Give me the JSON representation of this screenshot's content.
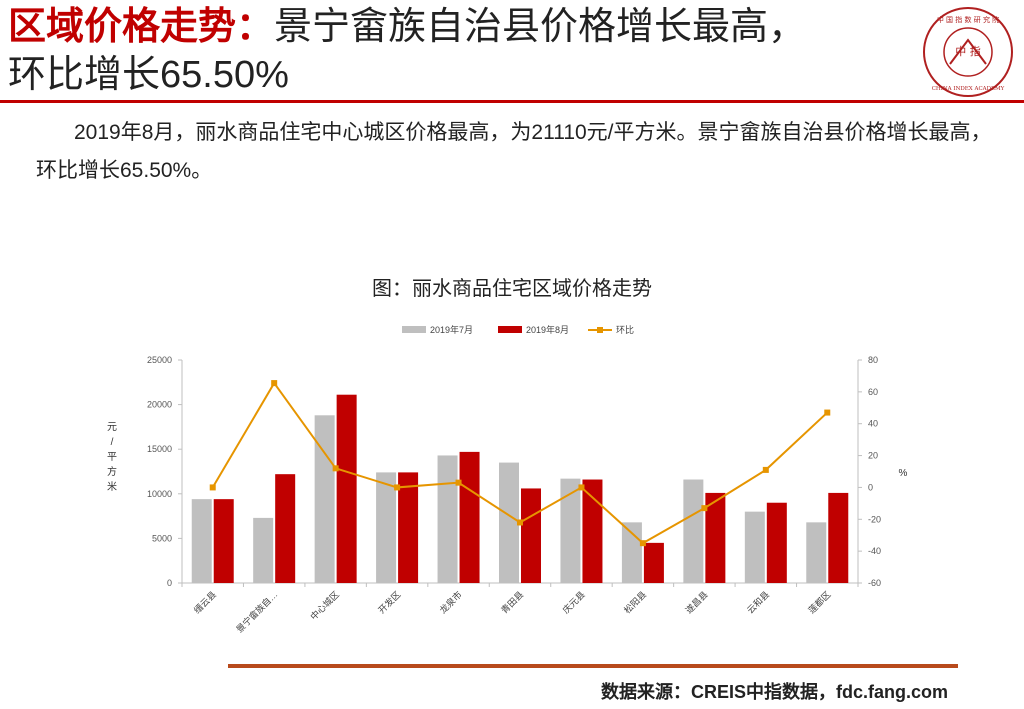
{
  "header": {
    "title_accent": "区域价格走势：",
    "title_rest": "景宁畲族自治县价格增长最高，",
    "title_line2": "环比增长65.50%"
  },
  "body": {
    "paragraph": "2019年8月，丽水商品住宅中心城区价格最高，为21110元/平方米。景宁畲族自治县价格增长最高，环比增长65.50%。"
  },
  "logo": {
    "center_text": "中 指",
    "ring_top": "中 国 指 数 研 究 院",
    "ring_bottom": "CHINA INDEX ACADEMY"
  },
  "chart_title": "图：丽水商品住宅区域价格走势",
  "chart_data": {
    "type": "bar+line",
    "categories": [
      "缙云县",
      "景宁畲族自…",
      "中心城区",
      "开发区",
      "龙泉市",
      "青田县",
      "庆元县",
      "松阳县",
      "遂昌县",
      "云和县",
      "莲都区"
    ],
    "series": [
      {
        "name": "2019年7月",
        "type": "bar",
        "axis": "left",
        "color": "#bfbfbf",
        "values": [
          9400,
          7300,
          18800,
          12400,
          14300,
          13500,
          11700,
          6800,
          11600,
          8000,
          6800
        ]
      },
      {
        "name": "2019年8月",
        "type": "bar",
        "axis": "left",
        "color": "#c00000",
        "values": [
          9400,
          12200,
          21110,
          12400,
          14700,
          10600,
          11600,
          4500,
          10100,
          9000,
          10100
        ]
      },
      {
        "name": "环比",
        "type": "line",
        "axis": "right",
        "color": "#e69500",
        "values": [
          0,
          65.5,
          12,
          0,
          3,
          -22,
          0,
          -35,
          -13,
          11,
          47
        ]
      }
    ],
    "y_left": {
      "label": "元/平方米",
      "min": 0,
      "max": 25000,
      "ticks": [
        0,
        5000,
        10000,
        15000,
        20000,
        25000
      ]
    },
    "y_right": {
      "label": "%",
      "min": -60,
      "max": 80,
      "ticks": [
        -60,
        -40,
        -20,
        0,
        20,
        40,
        60,
        80
      ]
    },
    "legend_position": "top",
    "grid": false
  },
  "source": "数据来源：CREIS中指数据，fdc.fang.com"
}
